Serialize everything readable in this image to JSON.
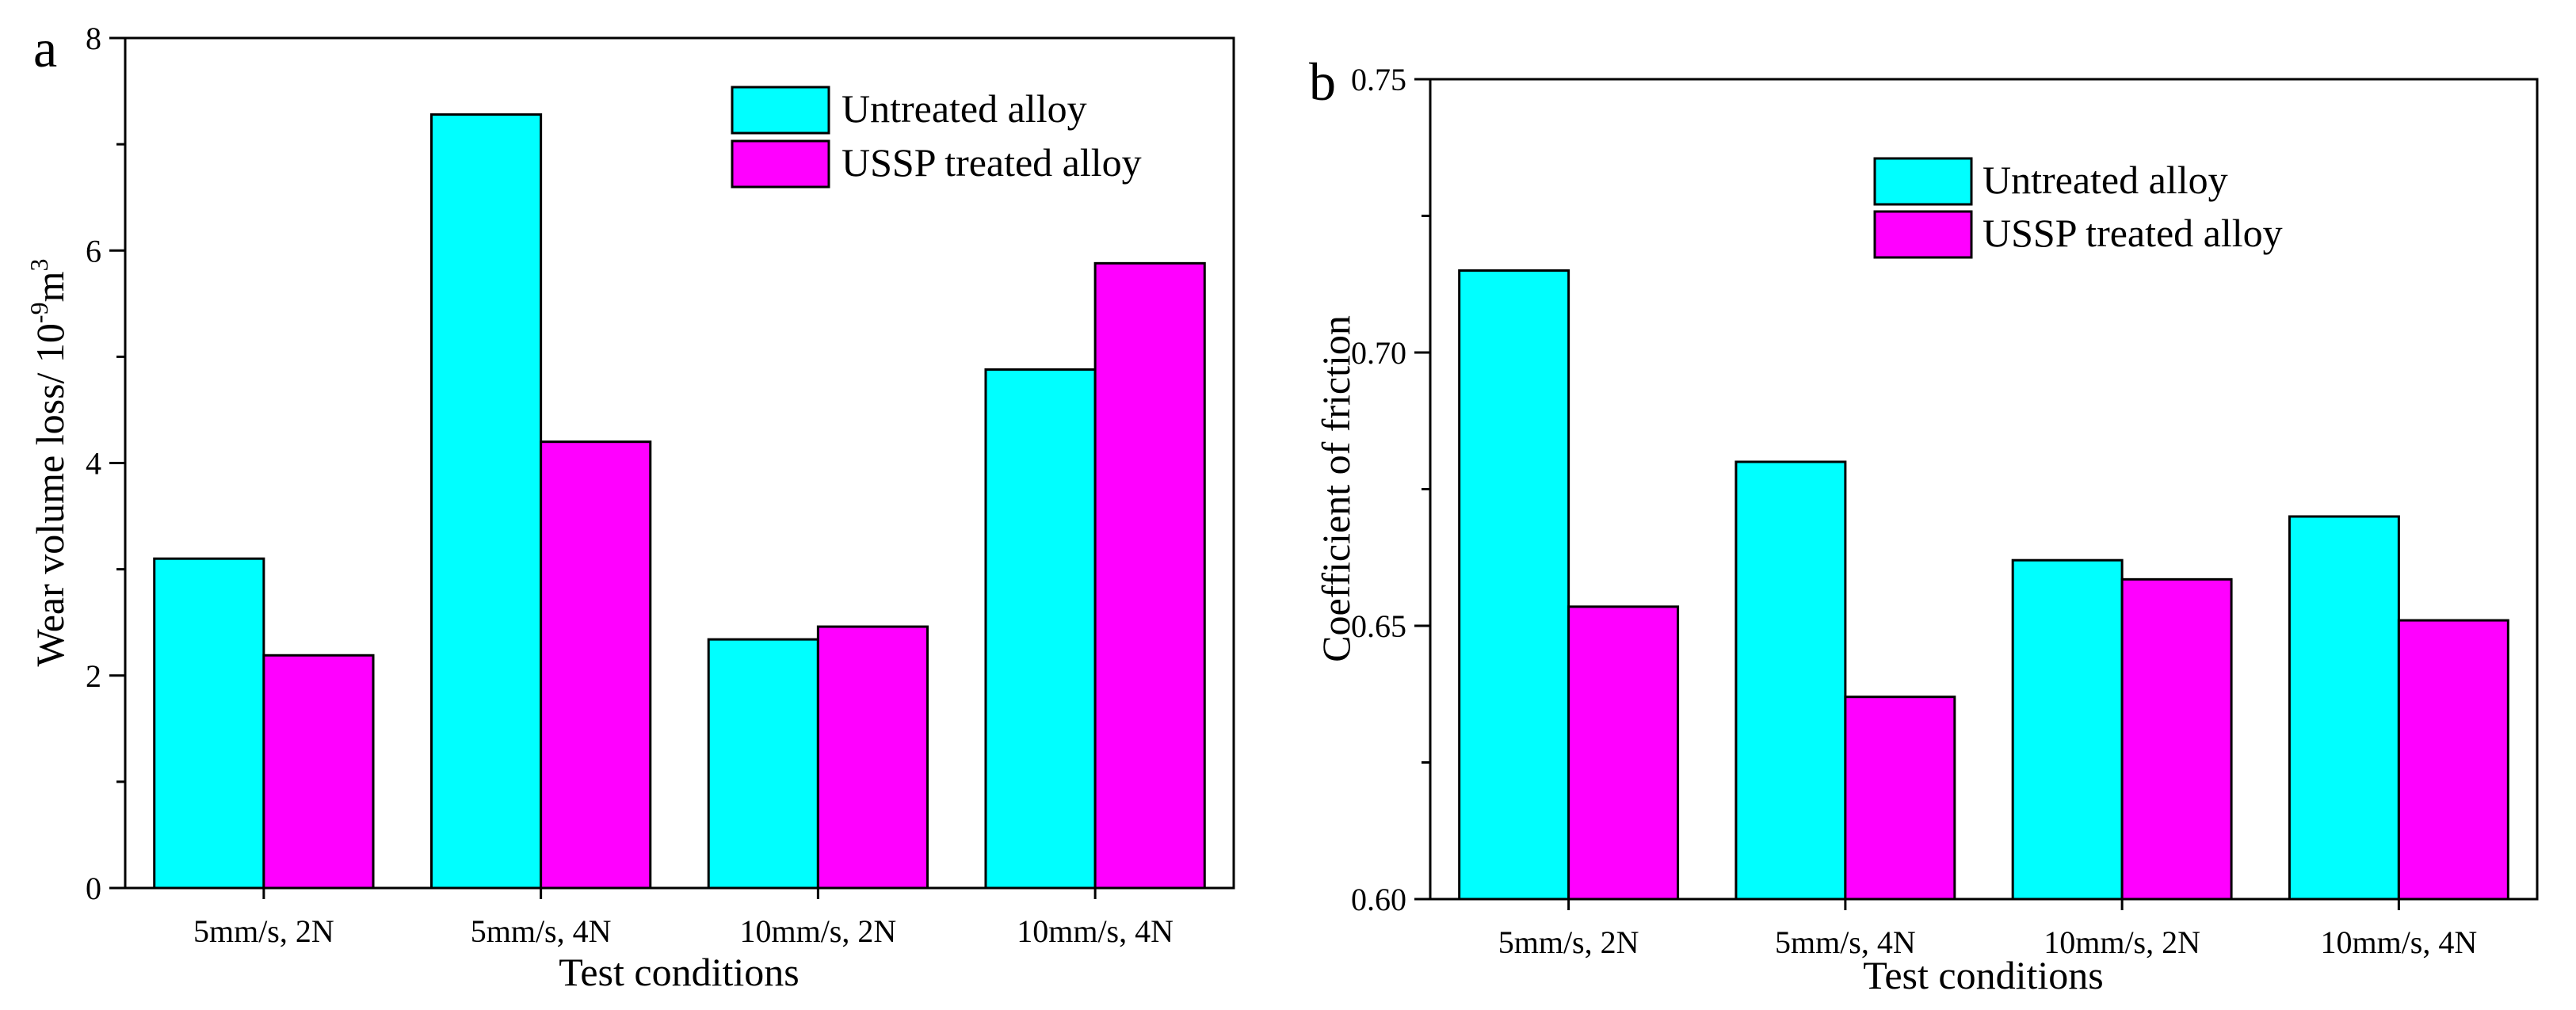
{
  "chart_data": [
    {
      "panel_label": "a",
      "type": "bar",
      "categories": [
        "5mm/s, 2N",
        "5mm/s, 4N",
        "10mm/s, 2N",
        "10mm/s, 4N"
      ],
      "series": [
        {
          "name": "Untreated alloy",
          "color": "#00ffff",
          "values": [
            3.1,
            7.28,
            2.34,
            4.88
          ]
        },
        {
          "name": "USSP treated alloy",
          "color": "#ff00ff",
          "values": [
            2.19,
            4.2,
            2.46,
            5.88
          ]
        }
      ],
      "xlabel": "Test conditions",
      "ylabel": "Wear volume loss/ 10",
      "ylabel_exp1": "-9",
      "ylabel_unit": "m",
      "ylabel_exp2": "3",
      "ylim": [
        0,
        8
      ],
      "yticks": [
        "0",
        "2",
        "4",
        "6",
        "8"
      ],
      "legend_position": "top-right"
    },
    {
      "panel_label": "b",
      "type": "bar",
      "categories": [
        "5mm/s, 2N",
        "5mm/s, 4N",
        "10mm/s, 2N",
        "10mm/s, 4N"
      ],
      "series": [
        {
          "name": "Untreated alloy",
          "color": "#00ffff",
          "values": [
            0.715,
            0.68,
            0.662,
            0.67
          ]
        },
        {
          "name": "USSP treated alloy",
          "color": "#ff00ff",
          "values": [
            0.6535,
            0.637,
            0.6585,
            0.651
          ]
        }
      ],
      "xlabel": "Test conditions",
      "ylabel": "Coefficient of friction",
      "ylim": [
        0.6,
        0.75
      ],
      "yticks": [
        "0.60",
        "0.65",
        "0.70",
        "0.75"
      ],
      "legend_position": "top-right"
    }
  ]
}
